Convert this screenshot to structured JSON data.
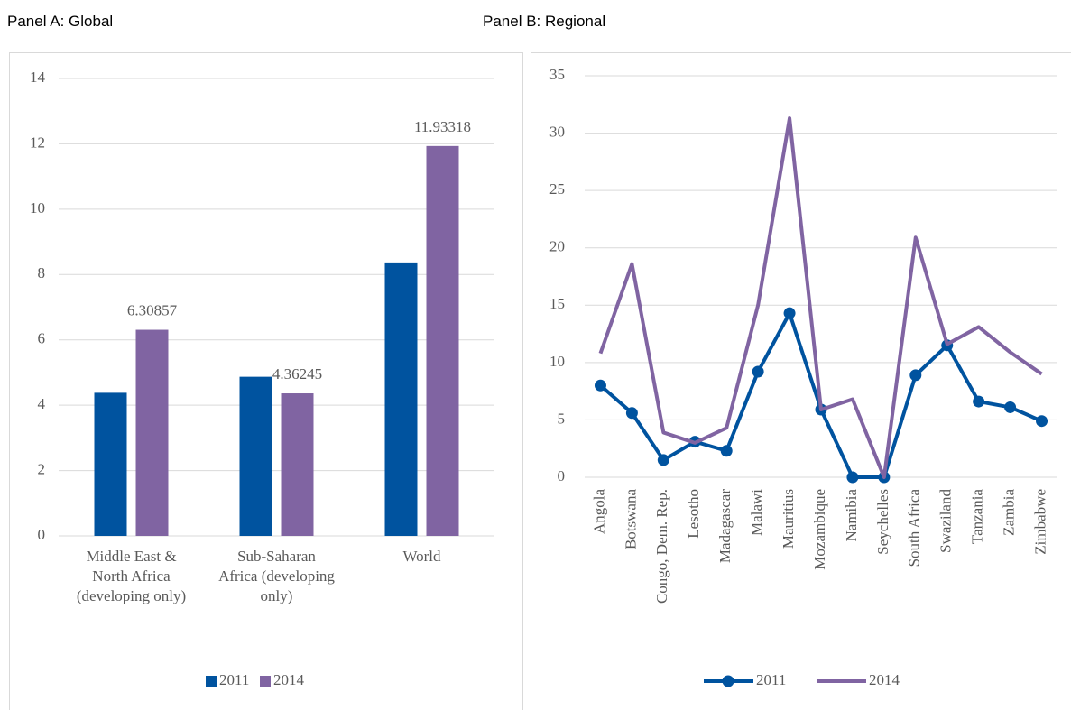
{
  "chart_data": [
    {
      "type": "bar",
      "title": "Panel A: Global",
      "categories": [
        "Middle East & North Africa (developing only)",
        "Sub-Saharan Africa (developing only)",
        "World"
      ],
      "series": [
        {
          "name": "2011",
          "color": "#00539f",
          "values": [
            4.38,
            4.87,
            8.37
          ]
        },
        {
          "name": "2014",
          "color": "#8064a2",
          "values": [
            6.30857,
            4.36245,
            11.93318
          ],
          "show_labels": true
        }
      ],
      "ylim": [
        0,
        14
      ],
      "yticks": [
        0,
        2,
        4,
        6,
        8,
        10,
        12,
        14
      ],
      "grid": true,
      "legend": "bottom"
    },
    {
      "type": "line",
      "title": "Panel B: Regional",
      "categories": [
        "Angola",
        "Botswana",
        "Congo, Dem. Rep.",
        "Lesotho",
        "Madagascar",
        "Malawi",
        "Mauritius",
        "Mozambique",
        "Namibia",
        "Seychelles",
        "South Africa",
        "Swaziland",
        "Tanzania",
        "Zambia",
        "Zimbabwe"
      ],
      "series": [
        {
          "name": "2011",
          "color": "#00539f",
          "marker": "circle",
          "values": [
            8.0,
            5.6,
            1.5,
            3.1,
            2.3,
            9.2,
            14.3,
            5.9,
            0,
            0,
            8.9,
            11.5,
            6.6,
            6.1,
            4.9
          ]
        },
        {
          "name": "2014",
          "color": "#8064a2",
          "values": [
            10.8,
            18.6,
            3.9,
            3.0,
            4.3,
            15.0,
            31.3,
            5.9,
            6.8,
            0,
            20.9,
            11.6,
            13.1,
            10.9,
            9.0
          ]
        }
      ],
      "ylim": [
        0,
        35
      ],
      "yticks": [
        0,
        5,
        10,
        15,
        20,
        25,
        30,
        35
      ],
      "grid": true,
      "legend": "bottom"
    }
  ]
}
